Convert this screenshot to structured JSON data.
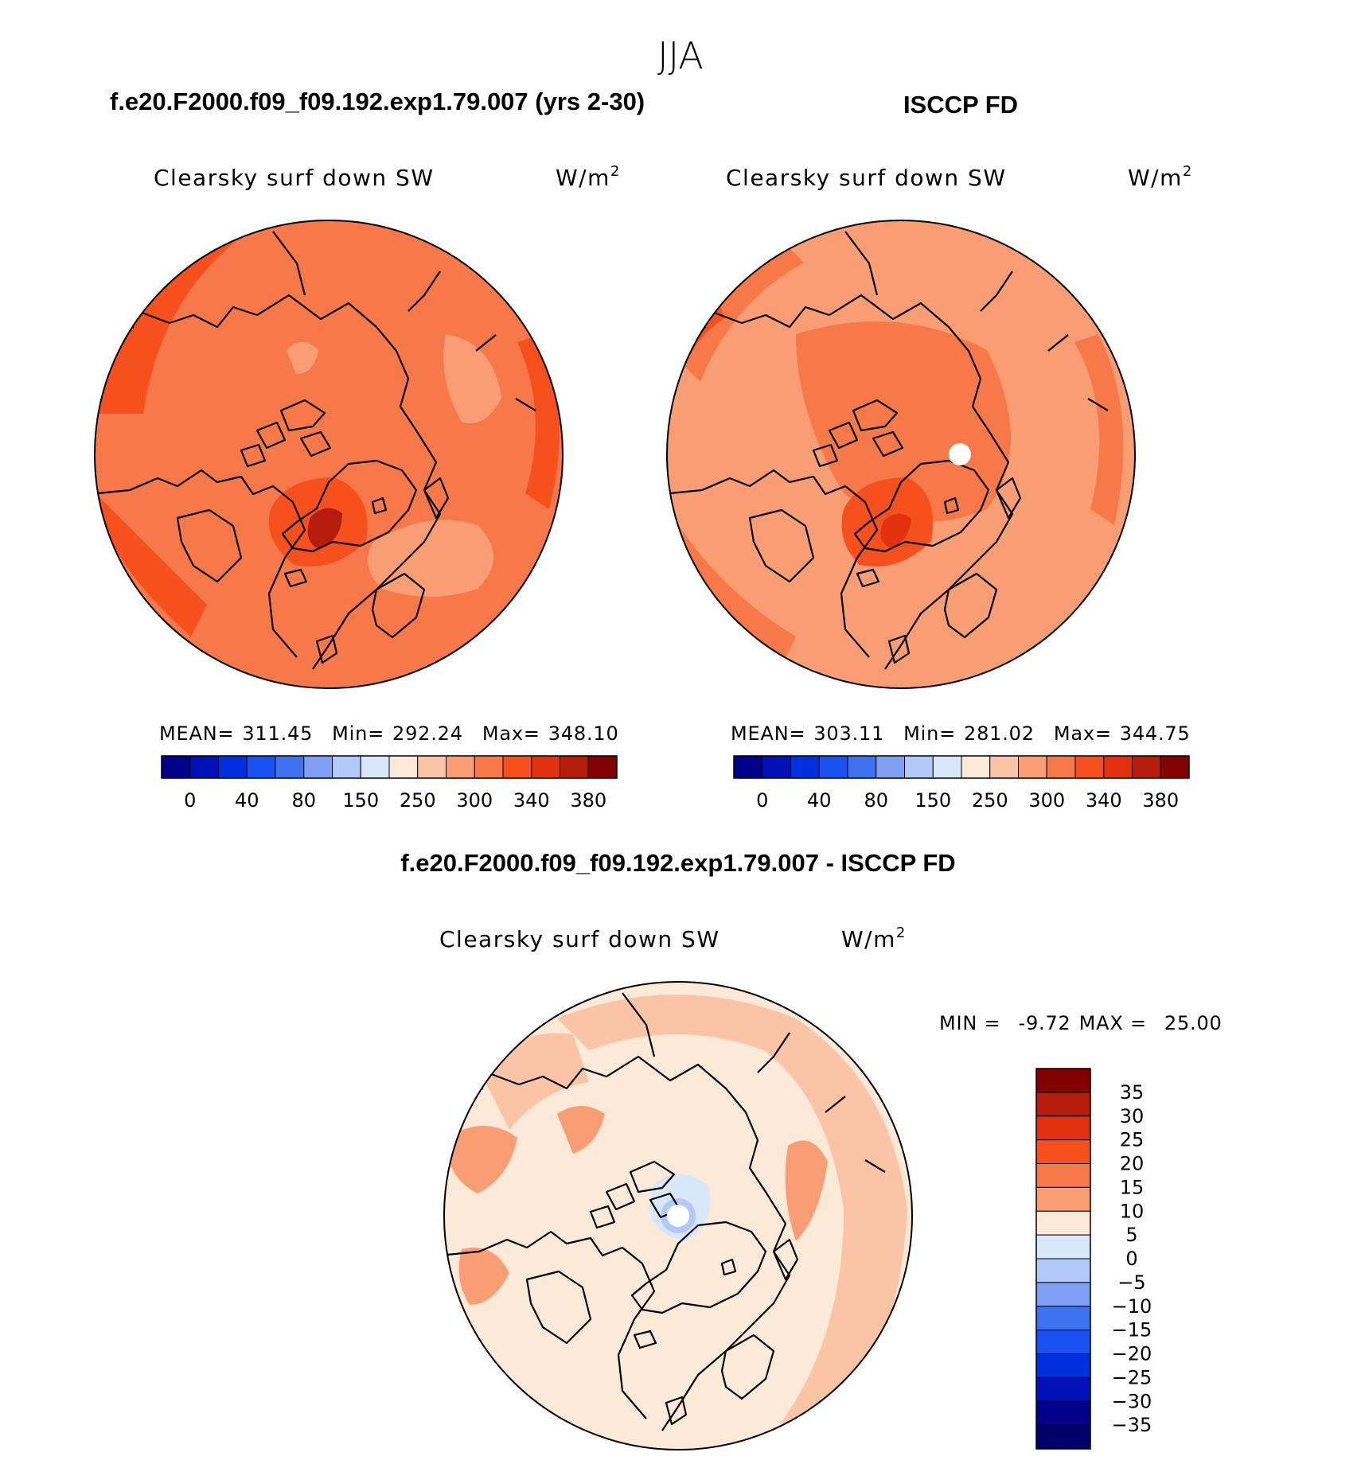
{
  "season": "JJA",
  "chart_data": [
    {
      "type": "heatmap",
      "panel": "model",
      "title": "f.e20.F2000.f09_f09.192.exp1.79.007 (yrs 2-30)",
      "variable": "Clearsky surf down SW",
      "units_base": "W/m",
      "units_exp": "2",
      "stats": {
        "mean_label": "MEAN=",
        "mean": "311.45",
        "min_label": "Min=",
        "min": "292.24",
        "max_label": "Max=",
        "max": "348.10"
      },
      "colorbar": {
        "orientation": "horizontal",
        "levels": [
          0,
          20,
          40,
          60,
          80,
          100,
          150,
          200,
          250,
          275,
          300,
          320,
          340,
          360,
          380
        ],
        "tick_labels": [
          "0",
          "40",
          "80",
          "150",
          "250",
          "300",
          "340",
          "380"
        ],
        "colors": [
          "#00008a",
          "#0012b5",
          "#0030dd",
          "#1a52f2",
          "#3f72f0",
          "#7f9ff4",
          "#b3c9f9",
          "#d8e8fa",
          "#fde9d8",
          "#fbc4a6",
          "#f99d75",
          "#f77849",
          "#f5501e",
          "#e2310f",
          "#b51c0c",
          "#830000"
        ]
      }
    },
    {
      "type": "heatmap",
      "panel": "obs",
      "title": "ISCCP FD",
      "variable": "Clearsky surf down SW",
      "units_base": "W/m",
      "units_exp": "2",
      "stats": {
        "mean_label": "MEAN=",
        "mean": "303.11",
        "min_label": "Min=",
        "min": "281.02",
        "max_label": "Max=",
        "max": "344.75"
      },
      "colorbar": {
        "orientation": "horizontal",
        "levels": [
          0,
          20,
          40,
          60,
          80,
          100,
          150,
          200,
          250,
          275,
          300,
          320,
          340,
          360,
          380
        ],
        "tick_labels": [
          "0",
          "40",
          "80",
          "150",
          "250",
          "300",
          "340",
          "380"
        ],
        "colors": [
          "#00008a",
          "#0012b5",
          "#0030dd",
          "#1a52f2",
          "#3f72f0",
          "#7f9ff4",
          "#b3c9f9",
          "#d8e8fa",
          "#fde9d8",
          "#fbc4a6",
          "#f99d75",
          "#f77849",
          "#f5501e",
          "#e2310f",
          "#b51c0c",
          "#830000"
        ]
      }
    },
    {
      "type": "heatmap",
      "panel": "difference",
      "title": "f.e20.F2000.f09_f09.192.exp1.79.007 - ISCCP FD",
      "variable": "Clearsky surf down SW",
      "units_base": "W/m",
      "units_exp": "2",
      "stats": {
        "min_label": "MIN =",
        "min": "-9.72",
        "max_label": "MAX =",
        "max": "25.00"
      },
      "colorbar": {
        "orientation": "vertical",
        "levels": [
          -35,
          -30,
          -25,
          -20,
          -15,
          -10,
          -5,
          0,
          5,
          10,
          15,
          20,
          25,
          30,
          35
        ],
        "tick_labels": [
          "35",
          "30",
          "25",
          "20",
          "15",
          "10",
          "5",
          "0",
          "−5",
          "−10",
          "−15",
          "−20",
          "−25",
          "−30",
          "−35"
        ],
        "colors": [
          "#830000",
          "#b51c0c",
          "#e2310f",
          "#f5501e",
          "#f77849",
          "#f99d75",
          "#fde9d8",
          "#d8e8fa",
          "#b3c9f9",
          "#7f9ff4",
          "#3f72f0",
          "#1a52f2",
          "#0030dd",
          "#0012b5",
          "#00008a",
          "#00006a"
        ]
      }
    }
  ]
}
